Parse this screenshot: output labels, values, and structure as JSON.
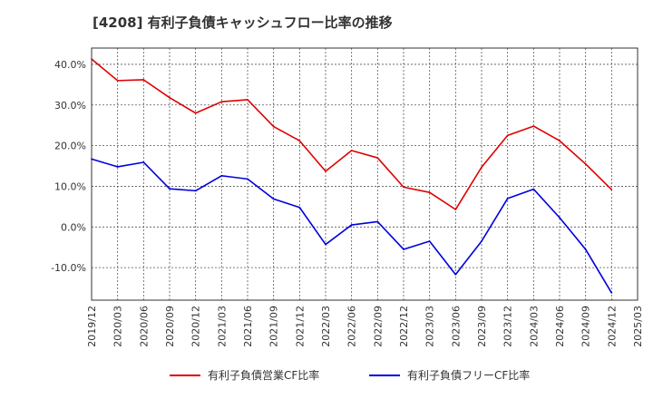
{
  "chart_data": {
    "type": "line",
    "title": "[4208]  有利子負債キャッシュフロー比率の推移",
    "xlabel": "",
    "ylabel": "",
    "ylim": [
      -18,
      44
    ],
    "yticks": [
      40,
      30,
      20,
      10,
      0,
      -10
    ],
    "ytick_labels": [
      "40.0%",
      "30.0%",
      "20.0%",
      "10.0%",
      "0.0%",
      "-10.0%"
    ],
    "xticks": [
      "2019/12",
      "2020/03",
      "2020/06",
      "2020/09",
      "2020/12",
      "2021/03",
      "2021/06",
      "2021/09",
      "2021/12",
      "2022/03",
      "2022/06",
      "2022/09",
      "2022/12",
      "2023/03",
      "2023/06",
      "2023/09",
      "2023/12",
      "2024/03",
      "2024/06",
      "2024/09",
      "2024/12",
      "2025/03"
    ],
    "grid": true,
    "legend_position": "bottom",
    "series": [
      {
        "name": "有利子負債営業CF比率",
        "color": "#dd0000",
        "x": [
          "2019/12",
          "2020/03",
          "2020/06",
          "2020/09",
          "2020/12",
          "2021/03",
          "2021/06",
          "2021/09",
          "2021/12",
          "2022/03",
          "2022/06",
          "2022/09",
          "2022/12",
          "2023/03",
          "2023/06",
          "2023/09",
          "2023/12",
          "2024/03",
          "2024/06",
          "2024/09",
          "2024/12"
        ],
        "values": [
          41.3,
          36.0,
          36.2,
          31.8,
          28.0,
          30.8,
          31.3,
          24.7,
          21.2,
          13.7,
          18.8,
          17.0,
          9.8,
          8.5,
          4.3,
          14.7,
          22.5,
          24.8,
          21.2,
          15.5,
          9.2
        ]
      },
      {
        "name": "有利子負債フリーCF比率",
        "color": "#0000dd",
        "x": [
          "2019/12",
          "2020/03",
          "2020/06",
          "2020/09",
          "2020/12",
          "2021/03",
          "2021/06",
          "2021/09",
          "2021/12",
          "2022/03",
          "2022/06",
          "2022/09",
          "2022/12",
          "2023/03",
          "2023/06",
          "2023/09",
          "2023/12",
          "2024/03",
          "2024/06",
          "2024/09",
          "2024/12"
        ],
        "values": [
          16.7,
          14.8,
          15.9,
          9.4,
          8.9,
          12.6,
          11.8,
          6.9,
          4.8,
          -4.3,
          0.5,
          1.3,
          -5.5,
          -3.5,
          -11.7,
          -3.5,
          7.0,
          9.3,
          2.3,
          -5.5,
          -16.2
        ]
      }
    ]
  }
}
